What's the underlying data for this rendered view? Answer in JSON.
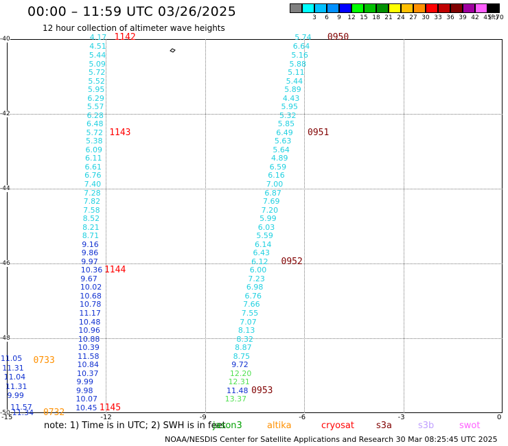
{
  "header": {
    "title": "00:00 – 11:59 UTC 03/26/2025",
    "subtitle": "12 hour collection of altimeter wave heights"
  },
  "legend": {
    "unit": "(ft)",
    "entries": [
      {
        "label": "",
        "color": "#808080"
      },
      {
        "label": "3",
        "color": "#00ffff"
      },
      {
        "label": "6",
        "color": "#00c0ff"
      },
      {
        "label": "9",
        "color": "#0090ff"
      },
      {
        "label": "12",
        "color": "#0000ff"
      },
      {
        "label": "15",
        "color": "#00ff00"
      },
      {
        "label": "18",
        "color": "#00c000"
      },
      {
        "label": "21",
        "color": "#009000"
      },
      {
        "label": "24",
        "color": "#ffff00"
      },
      {
        "label": "27",
        "color": "#ffc000"
      },
      {
        "label": "30",
        "color": "#ff9000"
      },
      {
        "label": "33",
        "color": "#ff0000"
      },
      {
        "label": "36",
        "color": "#c00000"
      },
      {
        "label": "39",
        "color": "#800000"
      },
      {
        "label": "42",
        "color": "#a000a0"
      },
      {
        "label": "45",
        "color": "#ff60ff"
      },
      {
        "label": "70",
        "color": "#000000"
      }
    ]
  },
  "axes": {
    "x_ticks": [
      -15,
      -12,
      -9,
      -6,
      -3,
      0
    ],
    "y_ticks": [
      -40,
      -42,
      -44,
      -46,
      -48,
      -50
    ],
    "x_range": [
      -15,
      0
    ],
    "y_range": [
      -50,
      -40
    ]
  },
  "tracks": [
    {
      "name": "left-track",
      "points": [
        {
          "v": "4.17",
          "x": -12.2,
          "y": -39.97,
          "c": "#20d0e0"
        },
        {
          "v": "4.51",
          "x": -12.21,
          "y": -40.21,
          "c": "#20d0e0"
        },
        {
          "v": "5.44",
          "x": -12.22,
          "y": -40.44,
          "c": "#20d0e0"
        },
        {
          "v": "5.09",
          "x": -12.23,
          "y": -40.67,
          "c": "#20d0e0"
        },
        {
          "v": "5.72",
          "x": -12.24,
          "y": -40.9,
          "c": "#20d0e0"
        },
        {
          "v": "5.52",
          "x": -12.25,
          "y": -41.13,
          "c": "#20d0e0"
        },
        {
          "v": "5.95",
          "x": -12.26,
          "y": -41.36,
          "c": "#20d0e0"
        },
        {
          "v": "6.29",
          "x": -12.27,
          "y": -41.59,
          "c": "#20d0e0"
        },
        {
          "v": "5.57",
          "x": -12.28,
          "y": -41.82,
          "c": "#20d0e0"
        },
        {
          "v": "6.28",
          "x": -12.29,
          "y": -42.05,
          "c": "#20d0e0"
        },
        {
          "v": "6.48",
          "x": -12.3,
          "y": -42.28,
          "c": "#20d0e0"
        },
        {
          "v": "5.72",
          "x": -12.31,
          "y": -42.51,
          "c": "#20d0e0"
        },
        {
          "v": "5.38",
          "x": -12.32,
          "y": -42.74,
          "c": "#20d0e0"
        },
        {
          "v": "6.09",
          "x": -12.33,
          "y": -42.97,
          "c": "#20d0e0"
        },
        {
          "v": "6.11",
          "x": -12.34,
          "y": -43.2,
          "c": "#20d0e0"
        },
        {
          "v": "6.61",
          "x": -12.35,
          "y": -43.43,
          "c": "#20d0e0"
        },
        {
          "v": "6.76",
          "x": -12.36,
          "y": -43.66,
          "c": "#20d0e0"
        },
        {
          "v": "7.40",
          "x": -12.37,
          "y": -43.89,
          "c": "#20d0e0"
        },
        {
          "v": "7.28",
          "x": -12.38,
          "y": -44.12,
          "c": "#20d0e0"
        },
        {
          "v": "7.82",
          "x": -12.39,
          "y": -44.35,
          "c": "#20d0e0"
        },
        {
          "v": "7.58",
          "x": -12.4,
          "y": -44.58,
          "c": "#20d0e0"
        },
        {
          "v": "8.52",
          "x": -12.41,
          "y": -44.81,
          "c": "#20d0e0"
        },
        {
          "v": "8.21",
          "x": -12.42,
          "y": -45.04,
          "c": "#20d0e0"
        },
        {
          "v": "8.71",
          "x": -12.43,
          "y": -45.27,
          "c": "#20d0e0"
        },
        {
          "v": "9.16",
          "x": -12.44,
          "y": -45.5,
          "c": "#1030d0"
        },
        {
          "v": "9.86",
          "x": -12.45,
          "y": -45.73,
          "c": "#1030d0"
        },
        {
          "v": "9.97",
          "x": -12.46,
          "y": -45.96,
          "c": "#1030d0"
        },
        {
          "v": "10.36",
          "x": -12.47,
          "y": -46.19,
          "c": "#1030d0"
        },
        {
          "v": "9.67",
          "x": -12.48,
          "y": -46.42,
          "c": "#1030d0"
        },
        {
          "v": "10.02",
          "x": -12.49,
          "y": -46.65,
          "c": "#1030d0"
        },
        {
          "v": "10.68",
          "x": -12.5,
          "y": -46.88,
          "c": "#1030d0"
        },
        {
          "v": "10.78",
          "x": -12.51,
          "y": -47.11,
          "c": "#1030d0"
        },
        {
          "v": "11.17",
          "x": -12.52,
          "y": -47.34,
          "c": "#1030d0"
        },
        {
          "v": "10.48",
          "x": -12.53,
          "y": -47.57,
          "c": "#1030d0"
        },
        {
          "v": "10.96",
          "x": -12.54,
          "y": -47.8,
          "c": "#1030d0"
        },
        {
          "v": "10.88",
          "x": -12.55,
          "y": -48.03,
          "c": "#1030d0"
        },
        {
          "v": "10.39",
          "x": -12.56,
          "y": -48.26,
          "c": "#1030d0"
        },
        {
          "v": "11.58",
          "x": -12.57,
          "y": -48.49,
          "c": "#1030d0"
        },
        {
          "v": "10.84",
          "x": -12.58,
          "y": -48.72,
          "c": "#1030d0"
        },
        {
          "v": "10.37",
          "x": -12.59,
          "y": -48.95,
          "c": "#1030d0"
        },
        {
          "v": "9.99",
          "x": -12.6,
          "y": -49.18,
          "c": "#1030d0"
        },
        {
          "v": "9.98",
          "x": -12.61,
          "y": -49.41,
          "c": "#1030d0"
        },
        {
          "v": "10.07",
          "x": -12.62,
          "y": -49.64,
          "c": "#1030d0"
        },
        {
          "v": "10.45",
          "x": -12.63,
          "y": -49.87,
          "c": "#1030d0"
        }
      ]
    },
    {
      "name": "short-track",
      "points": [
        {
          "v": "11.05",
          "x": -14.9,
          "y": -48.55,
          "c": "#1030d0"
        },
        {
          "v": "11.31",
          "x": -14.85,
          "y": -48.8,
          "c": "#1030d0"
        },
        {
          "v": "11.04",
          "x": -14.8,
          "y": -49.05,
          "c": "#1030d0"
        },
        {
          "v": "11.31",
          "x": -14.75,
          "y": -49.3,
          "c": "#1030d0"
        },
        {
          "v": "9.99",
          "x": -14.7,
          "y": -49.55,
          "c": "#1030d0"
        },
        {
          "v": "11.57",
          "x": -14.6,
          "y": -49.85,
          "c": "#1030d0"
        },
        {
          "v": "11.34",
          "x": -14.55,
          "y": -50.0,
          "c": "#1030d0"
        }
      ]
    },
    {
      "name": "right-track",
      "points": [
        {
          "v": "5.74",
          "x": -6.0,
          "y": -39.97,
          "c": "#20d0e0"
        },
        {
          "v": "6.64",
          "x": -6.05,
          "y": -40.21,
          "c": "#20d0e0"
        },
        {
          "v": "5.16",
          "x": -6.1,
          "y": -40.44,
          "c": "#20d0e0"
        },
        {
          "v": "5.88",
          "x": -6.16,
          "y": -40.67,
          "c": "#20d0e0"
        },
        {
          "v": "5.11",
          "x": -6.21,
          "y": -40.9,
          "c": "#20d0e0"
        },
        {
          "v": "5.44",
          "x": -6.26,
          "y": -41.13,
          "c": "#20d0e0"
        },
        {
          "v": "5.89",
          "x": -6.31,
          "y": -41.36,
          "c": "#20d0e0"
        },
        {
          "v": "4.43",
          "x": -6.36,
          "y": -41.59,
          "c": "#20d0e0"
        },
        {
          "v": "5.95",
          "x": -6.41,
          "y": -41.82,
          "c": "#20d0e0"
        },
        {
          "v": "5.32",
          "x": -6.46,
          "y": -42.05,
          "c": "#20d0e0"
        },
        {
          "v": "5.85",
          "x": -6.51,
          "y": -42.28,
          "c": "#20d0e0"
        },
        {
          "v": "6.49",
          "x": -6.56,
          "y": -42.51,
          "c": "#20d0e0"
        },
        {
          "v": "5.63",
          "x": -6.61,
          "y": -42.74,
          "c": "#20d0e0"
        },
        {
          "v": "5.64",
          "x": -6.66,
          "y": -42.97,
          "c": "#20d0e0"
        },
        {
          "v": "4.89",
          "x": -6.71,
          "y": -43.2,
          "c": "#20d0e0"
        },
        {
          "v": "6.59",
          "x": -6.76,
          "y": -43.43,
          "c": "#20d0e0"
        },
        {
          "v": "6.16",
          "x": -6.81,
          "y": -43.66,
          "c": "#20d0e0"
        },
        {
          "v": "7.00",
          "x": -6.86,
          "y": -43.89,
          "c": "#20d0e0"
        },
        {
          "v": "6.87",
          "x": -6.91,
          "y": -44.12,
          "c": "#20d0e0"
        },
        {
          "v": "7.69",
          "x": -6.96,
          "y": -44.35,
          "c": "#20d0e0"
        },
        {
          "v": "7.20",
          "x": -7.01,
          "y": -44.58,
          "c": "#20d0e0"
        },
        {
          "v": "5.99",
          "x": -7.06,
          "y": -44.81,
          "c": "#20d0e0"
        },
        {
          "v": "6.03",
          "x": -7.11,
          "y": -45.04,
          "c": "#20d0e0"
        },
        {
          "v": "5.59",
          "x": -7.16,
          "y": -45.27,
          "c": "#20d0e0"
        },
        {
          "v": "6.14",
          "x": -7.21,
          "y": -45.5,
          "c": "#20d0e0"
        },
        {
          "v": "6.43",
          "x": -7.26,
          "y": -45.73,
          "c": "#20d0e0"
        },
        {
          "v": "6.12",
          "x": -7.31,
          "y": -45.96,
          "c": "#20d0e0"
        },
        {
          "v": "6.00",
          "x": -7.36,
          "y": -46.19,
          "c": "#20d0e0"
        },
        {
          "v": "7.23",
          "x": -7.41,
          "y": -46.42,
          "c": "#20d0e0"
        },
        {
          "v": "6.98",
          "x": -7.46,
          "y": -46.65,
          "c": "#20d0e0"
        },
        {
          "v": "6.76",
          "x": -7.51,
          "y": -46.88,
          "c": "#20d0e0"
        },
        {
          "v": "7.66",
          "x": -7.56,
          "y": -47.11,
          "c": "#20d0e0"
        },
        {
          "v": "7.55",
          "x": -7.61,
          "y": -47.34,
          "c": "#20d0e0"
        },
        {
          "v": "7.07",
          "x": -7.66,
          "y": -47.57,
          "c": "#20d0e0"
        },
        {
          "v": "8.13",
          "x": -7.71,
          "y": -47.8,
          "c": "#20d0e0"
        },
        {
          "v": "8.32",
          "x": -7.76,
          "y": -48.03,
          "c": "#20d0e0"
        },
        {
          "v": "8.87",
          "x": -7.81,
          "y": -48.26,
          "c": "#20d0e0"
        },
        {
          "v": "8.75",
          "x": -7.86,
          "y": -48.49,
          "c": "#20d0e0"
        },
        {
          "v": "9.72",
          "x": -7.91,
          "y": -48.72,
          "c": "#1030d0"
        },
        {
          "v": "12.20",
          "x": -7.96,
          "y": -48.95,
          "c": "#50e050"
        },
        {
          "v": "12.31",
          "x": -8.01,
          "y": -49.18,
          "c": "#50e050"
        },
        {
          "v": "11.48",
          "x": -8.06,
          "y": -49.41,
          "c": "#1030d0"
        },
        {
          "v": "13.37",
          "x": -8.11,
          "y": -49.64,
          "c": "#50e050"
        }
      ]
    }
  ],
  "time_labels": [
    {
      "t": "1142",
      "x": -11.75,
      "y": -39.97,
      "c": "#ff0000"
    },
    {
      "t": "1143",
      "x": -11.9,
      "y": -42.51,
      "c": "#ff0000"
    },
    {
      "t": "1144",
      "x": -12.05,
      "y": -46.19,
      "c": "#ff0000"
    },
    {
      "t": "1145",
      "x": -12.2,
      "y": -49.87,
      "c": "#ff0000"
    },
    {
      "t": "0733",
      "x": -14.2,
      "y": -48.6,
      "c": "#ff9000"
    },
    {
      "t": "0732",
      "x": -13.9,
      "y": -50.0,
      "c": "#ff9000"
    },
    {
      "t": "0950",
      "x": -5.3,
      "y": -39.97,
      "c": "#800000"
    },
    {
      "t": "0951",
      "x": -5.9,
      "y": -42.51,
      "c": "#800000"
    },
    {
      "t": "0952",
      "x": -6.7,
      "y": -45.96,
      "c": "#800000"
    },
    {
      "t": "0953",
      "x": -7.6,
      "y": -49.41,
      "c": "#800000"
    }
  ],
  "footer": {
    "note": "note:  1) Time is in UTC;  2) SWH is in feet",
    "satellites": [
      {
        "name": "jason3",
        "color": "#00a000"
      },
      {
        "name": "altika",
        "color": "#ff9000"
      },
      {
        "name": "cryosat",
        "color": "#ff0000"
      },
      {
        "name": "s3a",
        "color": "#800000"
      },
      {
        "name": "s3b",
        "color": "#c0a0ff"
      },
      {
        "name": "swot",
        "color": "#ff60ff"
      }
    ],
    "credit": "NOAA/NESDIS Center for Satellite Applications and Research    30 Mar 08:25:45 UTC 2025"
  }
}
